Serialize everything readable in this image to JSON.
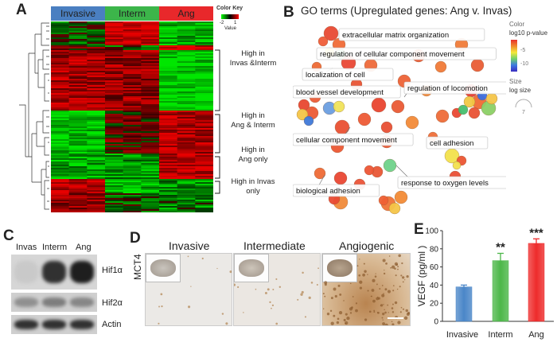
{
  "panel_A": {
    "letter": "A",
    "groups": [
      "Invasive",
      "Interm",
      "Ang"
    ],
    "group_colors": [
      "#4a7fc1",
      "#3cb54a",
      "#e8282b"
    ],
    "color_key": {
      "title": "Color Key",
      "ticks": [
        "-2",
        "1"
      ],
      "unit": "Value"
    },
    "cluster_labels": [
      [
        "High in",
        "Invas &Interm"
      ],
      [
        "High in",
        "Ang & Interm"
      ],
      [
        "High in",
        "Ang only"
      ],
      [
        "High in Invas",
        "only"
      ]
    ]
  },
  "panel_B": {
    "letter": "B",
    "title": "GO terms (Upregulated genes: Ang v. Invas)",
    "legend": {
      "color_title": "Color",
      "color_subtitle": "log10 p-value",
      "color_ticks": [
        "-5",
        "-10"
      ],
      "size_title": "Size",
      "size_subtitle": "log size",
      "size_tick": "7"
    },
    "terms": [
      "extracellular matrix organization",
      "regulation of cellular component movement",
      "localization of cell",
      "regulation of locomotion",
      "blood vessel development",
      "cell adhesion",
      "cellular component movement",
      "biological adhesion",
      "response to oxygen levels"
    ]
  },
  "panel_C": {
    "letter": "C",
    "lanes": [
      "Invas",
      "Interm",
      "Ang"
    ],
    "proteins": [
      "Hif1α",
      "Hif2α",
      "Actin"
    ],
    "band_intensity": [
      [
        0.05,
        0.85,
        0.95
      ],
      [
        0.35,
        0.45,
        0.4
      ],
      [
        0.85,
        0.85,
        0.85
      ]
    ]
  },
  "panel_D": {
    "letter": "D",
    "stain": "MCT4",
    "subtypes": [
      "Invasive",
      "Intermediate",
      "Angiogenic"
    ]
  },
  "chart_data": {
    "type": "bar",
    "letter": "E",
    "categories": [
      "Invasive",
      "Interm",
      "Ang"
    ],
    "values": [
      38,
      67,
      86
    ],
    "errors": [
      2,
      8,
      5
    ],
    "significance": [
      "",
      "**",
      "***"
    ],
    "colors": [
      "#4a86c8",
      "#4cb748",
      "#ee2b2b"
    ],
    "ylabel": "VEGF (pg/ml )",
    "ylim": [
      0,
      100
    ],
    "yticks": [
      0,
      20,
      40,
      60,
      80,
      100
    ]
  }
}
